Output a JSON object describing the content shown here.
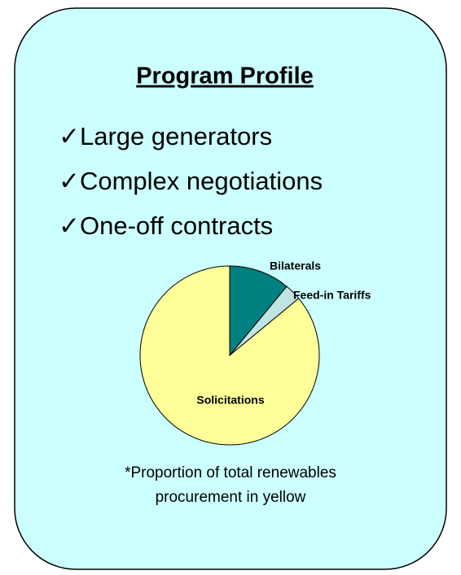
{
  "title": "Program Profile",
  "bullets": [
    "✓Large generators",
    "✓Complex negotiations",
    "✓One-off contracts"
  ],
  "chart_data": {
    "type": "pie",
    "categories": [
      "Bilaterals",
      "Feed-in Tariffs",
      "Solicitations"
    ],
    "values": [
      11,
      3,
      86
    ],
    "colors": [
      "#008080",
      "#c0e4e4",
      "#ffff99"
    ]
  },
  "footnote": [
    "*Proportion of total renewables",
    "procurement in yellow"
  ]
}
